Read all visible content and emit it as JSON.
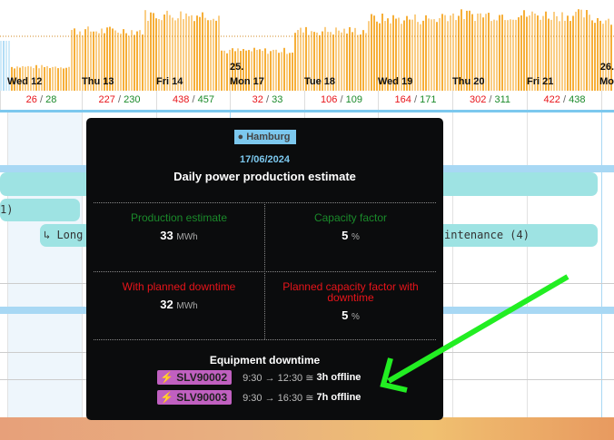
{
  "timeline": {
    "week_labels": [
      "25.",
      "26."
    ],
    "days": [
      {
        "label": "Wed 12",
        "planned": "26",
        "estimate": "28"
      },
      {
        "label": "Thu 13",
        "planned": "227",
        "estimate": "230"
      },
      {
        "label": "Fri 14",
        "planned": "438",
        "estimate": "457"
      },
      {
        "label": "Mon 17",
        "planned": "32",
        "estimate": "33"
      },
      {
        "label": "Tue 18",
        "planned": "106",
        "estimate": "109"
      },
      {
        "label": "Wed 19",
        "planned": "164",
        "estimate": "171"
      },
      {
        "label": "Thu 20",
        "planned": "302",
        "estimate": "311"
      },
      {
        "label": "Fri 21",
        "planned": "422",
        "estimate": "438"
      },
      {
        "label": "Mo",
        "planned": "",
        "estimate": ""
      }
    ],
    "separator": "/",
    "colors": {
      "bars": "#f5a623",
      "planned": "#e8141a",
      "estimate": "#1a8a2a"
    }
  },
  "gantt": {
    "bars": [
      "1)",
      "↳ Long maintenance",
      "↳ Long maintenance (4)"
    ]
  },
  "tooltip": {
    "location": "Hamburg",
    "date": "17/06/2024",
    "title": "Daily power production estimate",
    "production_label": "Production estimate",
    "production_value": "33",
    "production_unit": "MWh",
    "capacity_label": "Capacity factor",
    "capacity_value": "5",
    "capacity_unit": "%",
    "planned_label": "With planned downtime",
    "planned_value": "32",
    "planned_unit": "MWh",
    "planned_cf_label": "Planned capacity factor with downtime",
    "planned_cf_value": "5",
    "planned_cf_unit": "%",
    "equipment_title": "Equipment downtime",
    "equipment": [
      {
        "id": "SLV90002",
        "time": "9:30 → 12:30 ≅",
        "duration": "3h offline"
      },
      {
        "id": "SLV90003",
        "time": "9:30 → 16:30 ≅",
        "duration": "7h offline"
      }
    ]
  }
}
